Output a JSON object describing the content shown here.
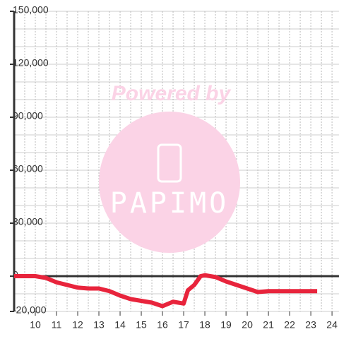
{
  "chart_data": {
    "type": "line",
    "watermark": {
      "title": "Powered by",
      "logo": "PAPIMO"
    },
    "x": [
      9,
      10,
      10.5,
      11,
      11.5,
      12,
      12.5,
      13,
      13.5,
      14,
      14.5,
      15,
      15.5,
      16,
      16.5,
      17,
      17.2,
      17.5,
      17.8,
      18,
      18.5,
      19,
      19.5,
      20,
      20.5,
      21,
      22,
      23.3
    ],
    "series": [
      {
        "color": "#e8243c",
        "values": [
          0,
          0,
          -1000,
          -3500,
          -5000,
          -6500,
          -7000,
          -7000,
          -8500,
          -11000,
          -13000,
          -14000,
          -15000,
          -17000,
          -14500,
          -15500,
          -8000,
          -5000,
          0,
          500,
          -500,
          -3000,
          -5000,
          -7000,
          -9000,
          -8500,
          -8500,
          -8500
        ]
      }
    ],
    "xlim": [
      9,
      24.33
    ],
    "xticks": [
      10,
      11,
      12,
      13,
      14,
      15,
      16,
      17,
      18,
      19,
      20,
      21,
      22,
      23,
      24
    ],
    "minor_xticks": [
      9.5,
      10,
      10.5,
      11,
      11.5,
      12,
      12.5,
      13,
      13.5,
      14,
      14.5,
      15,
      15.5,
      16,
      16.5,
      17,
      17.5,
      18,
      18.5,
      19,
      19.5,
      20,
      20.5,
      21,
      21.5,
      22,
      22.5,
      23,
      23.5,
      24
    ],
    "ylim": [
      -20000,
      150000
    ],
    "yticks": [
      {
        "value": -20000,
        "label": "-20,000"
      },
      0,
      {
        "value": 30000,
        "label": "30,000"
      },
      {
        "value": 60000,
        "label": "60,000"
      },
      {
        "value": 90000,
        "label": "90,000"
      },
      {
        "value": 120000,
        "label": "120,000"
      },
      {
        "value": 150000,
        "label": "150,000"
      }
    ],
    "minor_yticks": [
      -20000,
      -10000,
      10000,
      20000,
      30000,
      40000,
      50000,
      60000,
      70000,
      80000,
      90000,
      100000,
      110000,
      120000,
      130000,
      140000,
      150000
    ],
    "grid": true
  }
}
